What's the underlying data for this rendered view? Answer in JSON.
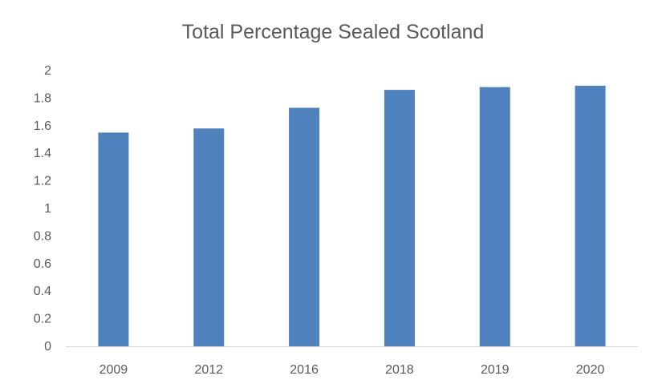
{
  "chart_data": {
    "type": "bar",
    "title": "Total Percentage Sealed Scotland",
    "xlabel": "",
    "ylabel": "",
    "categories": [
      "2009",
      "2012",
      "2016",
      "2018",
      "2019",
      "2020"
    ],
    "values": [
      1.55,
      1.58,
      1.73,
      1.86,
      1.88,
      1.89
    ],
    "ylim": [
      0,
      2
    ],
    "yticks": [
      "0",
      "0.2",
      "0.4",
      "0.6",
      "0.8",
      "1",
      "1.2",
      "1.4",
      "1.6",
      "1.8",
      "2"
    ],
    "grid": false,
    "legend": "none",
    "bar_color": "#4F81BD",
    "axis_color": "#D9D9D9",
    "text_color": "#595959"
  }
}
